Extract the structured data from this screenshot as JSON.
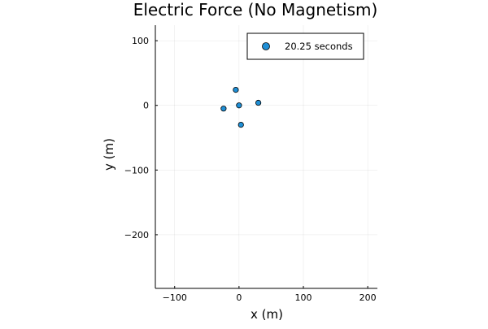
{
  "chart_data": {
    "type": "scatter",
    "title": "Electric Force (No Magnetism)",
    "xlabel": "x (m)",
    "ylabel": "y (m)",
    "xlim": [
      -130,
      215
    ],
    "ylim": [
      -283,
      124
    ],
    "xticks": [
      -100,
      0,
      100,
      200
    ],
    "yticks": [
      100,
      0,
      -100,
      -200
    ],
    "xtick_labels": [
      "−100",
      "0",
      "100",
      "200"
    ],
    "ytick_labels": [
      "100",
      "0",
      "−100",
      "−200"
    ],
    "grid": true,
    "legend_position": "top-right",
    "series": [
      {
        "name": "20.25 seconds",
        "color": "#1f8fd6",
        "marker": "circle",
        "points": [
          {
            "x": -5,
            "y": 24
          },
          {
            "x": -24,
            "y": -5
          },
          {
            "x": 0,
            "y": 0
          },
          {
            "x": 30,
            "y": 4
          },
          {
            "x": 3,
            "y": -30
          }
        ]
      }
    ]
  }
}
